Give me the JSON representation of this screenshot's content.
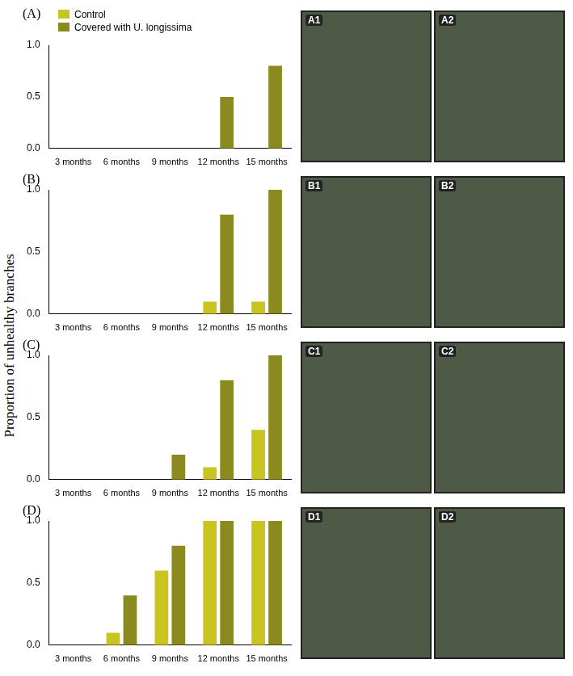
{
  "chart_data": [
    {
      "type": "bar",
      "title": "(A)",
      "legend": "top-left",
      "categories": [
        "3 months",
        "6 months",
        "9 months",
        "12 months",
        "15 months"
      ],
      "series": [
        {
          "name": "Control",
          "color": "#c9c41f",
          "values": [
            0,
            0,
            0,
            0,
            0
          ]
        },
        {
          "name": "Covered with U. longissima",
          "color": "#8a8a1e",
          "values": [
            0,
            0,
            0,
            0.5,
            0.8
          ]
        }
      ],
      "ylim": [
        0,
        1
      ],
      "yticks": [
        {
          "value": 0,
          "label": "0.0"
        },
        {
          "value": 0.5,
          "label": "0.5"
        },
        {
          "value": 1,
          "label": "1.0"
        }
      ],
      "grid": false
    },
    {
      "type": "bar",
      "title": "(B)",
      "categories": [
        "3 months",
        "6 months",
        "9 months",
        "12 months",
        "15 months"
      ],
      "series": [
        {
          "name": "Control",
          "color": "#c9c41f",
          "values": [
            0,
            0,
            0,
            0.1,
            0.1
          ]
        },
        {
          "name": "Covered with U. longissima",
          "color": "#8a8a1e",
          "values": [
            0,
            0,
            0,
            0.8,
            1.0
          ]
        }
      ],
      "ylim": [
        0,
        1
      ],
      "yticks": [
        {
          "value": 0,
          "label": "0.0"
        },
        {
          "value": 0.5,
          "label": "0.5"
        },
        {
          "value": 1,
          "label": "1.0"
        }
      ],
      "grid": false
    },
    {
      "type": "bar",
      "title": "(C)",
      "categories": [
        "3 months",
        "6 months",
        "9 months",
        "12 months",
        "15 months"
      ],
      "series": [
        {
          "name": "Control",
          "color": "#c9c41f",
          "values": [
            0,
            0,
            0,
            0.1,
            0.4
          ]
        },
        {
          "name": "Covered with U. longissima",
          "color": "#8a8a1e",
          "values": [
            0,
            0,
            0.2,
            0.8,
            1.0
          ]
        }
      ],
      "ylim": [
        0,
        1
      ],
      "yticks": [
        {
          "value": 0,
          "label": "0.0"
        },
        {
          "value": 0.5,
          "label": "0.5"
        },
        {
          "value": 1,
          "label": "1.0"
        }
      ],
      "grid": false
    },
    {
      "type": "bar",
      "title": "(D)",
      "categories": [
        "3 months",
        "6 months",
        "9 months",
        "12 months",
        "15 months"
      ],
      "series": [
        {
          "name": "Control",
          "color": "#c9c41f",
          "values": [
            0,
            0.1,
            0.6,
            1.0,
            1.0
          ]
        },
        {
          "name": "Covered with U. longissima",
          "color": "#8a8a1e",
          "values": [
            0,
            0.4,
            0.8,
            1.0,
            1.0
          ]
        }
      ],
      "ylim": [
        0,
        1
      ],
      "yticks": [
        {
          "value": 0,
          "label": "0.0"
        },
        {
          "value": 0.5,
          "label": "0.5"
        },
        {
          "value": 1,
          "label": "1.0"
        }
      ],
      "grid": false
    }
  ],
  "y_label": "Proportion of unhealthy branches",
  "photos": [
    [
      "A1",
      "A2"
    ],
    [
      "B1",
      "B2"
    ],
    [
      "C1",
      "C2"
    ],
    [
      "D1",
      "D2"
    ]
  ]
}
